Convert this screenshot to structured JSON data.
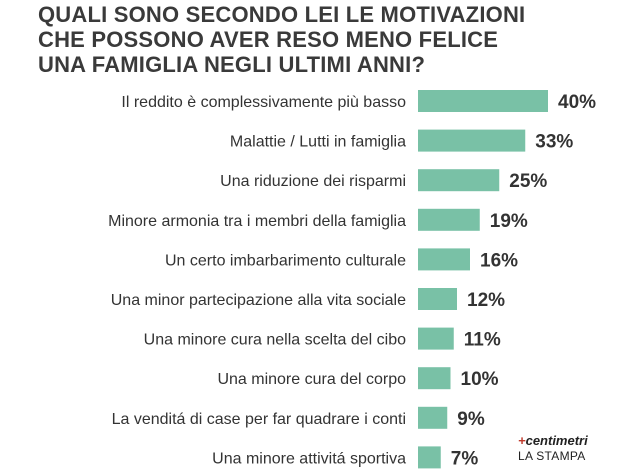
{
  "title_lines": [
    "QUALI SONO SECONDO LEI LE MOTIVAZIONI",
    "CHE POSSONO AVER RESO MENO FELICE",
    "UNA FAMIGLIA NEGLI ULTIMI ANNI?"
  ],
  "credit": {
    "brand": "centimetri",
    "brand_mark": "+",
    "paper": "LA STAMPA"
  },
  "colors": {
    "bar": "#79c1a6",
    "text": "#333333",
    "title": "#3a3a3a",
    "brand_mark": "#c0392b"
  },
  "chart_data": {
    "type": "bar",
    "orientation": "horizontal",
    "title": "QUALI SONO SECONDO LEI LE MOTIVAZIONI CHE POSSONO AVER RESO MENO FELICE UNA FAMIGLIA NEGLI ULTIMI ANNI?",
    "categories": [
      "Il reddito è complessivamente più basso",
      "Malattie / Lutti in famiglia",
      "Una riduzione dei risparmi",
      "Minore armonia tra i membri della famiglia",
      "Un certo imbarbarimento culturale",
      "Una minor partecipazione alla vita sociale",
      "Una minore cura nella scelta del cibo",
      "Una minore cura del corpo",
      "La venditá di case per far quadrare i conti",
      "Una minore attivitá sportiva"
    ],
    "values": [
      40,
      33,
      25,
      19,
      16,
      12,
      11,
      10,
      9,
      7
    ],
    "value_labels": [
      "40%",
      "33%",
      "25%",
      "19%",
      "16%",
      "12%",
      "11%",
      "10%",
      "9%",
      "7%"
    ],
    "unit": "%",
    "xlim": [
      0,
      40
    ],
    "grid": false,
    "legend": "none"
  }
}
